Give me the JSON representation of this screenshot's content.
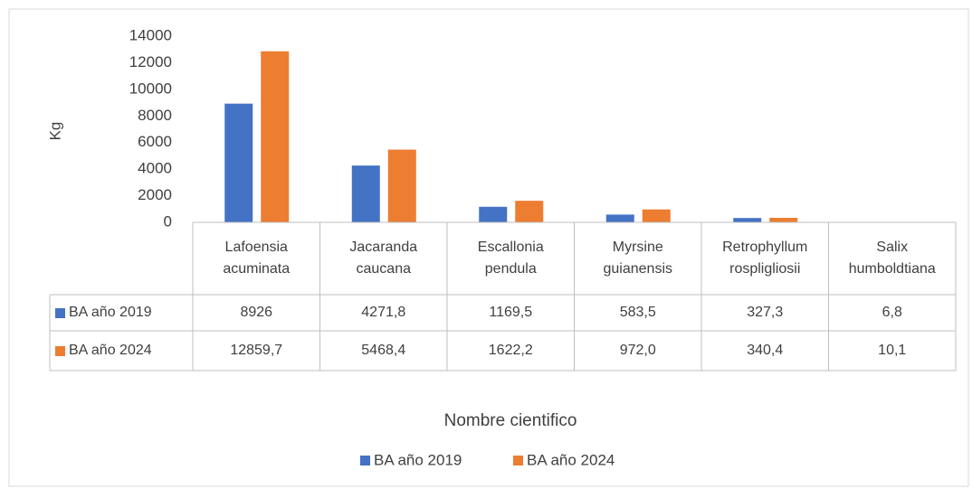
{
  "chart_data": {
    "type": "bar",
    "y_label": "Kg",
    "x_label": "Nombre cientifico",
    "categories": [
      "Lafoensia acuminata",
      "Jacaranda caucana",
      "Escallonia pendula",
      "Myrsine guianensis",
      "Retrophyllum rospligliosii",
      "Salix humboldtiana"
    ],
    "series": [
      {
        "name": "BA año 2019",
        "color": "#4472c4",
        "values": [
          8926,
          4271.8,
          1169.5,
          583.5,
          327.3,
          6.8
        ],
        "value_labels": [
          "8926",
          "4271,8",
          "1169,5",
          "583,5",
          "327,3",
          "6,8"
        ]
      },
      {
        "name": "BA año 2024",
        "color": "#ed7d31",
        "values": [
          12859.7,
          5468.4,
          1622.2,
          972.0,
          340.4,
          10.1
        ],
        "value_labels": [
          "12859,7",
          "5468,4",
          "1622,2",
          "972,0",
          "340,4",
          "10,1"
        ]
      }
    ],
    "ylim": [
      0,
      14000
    ],
    "yticks": [
      0,
      2000,
      4000,
      6000,
      8000,
      10000,
      12000,
      14000
    ],
    "grid": false,
    "legend": "bottom",
    "data_table": true
  }
}
